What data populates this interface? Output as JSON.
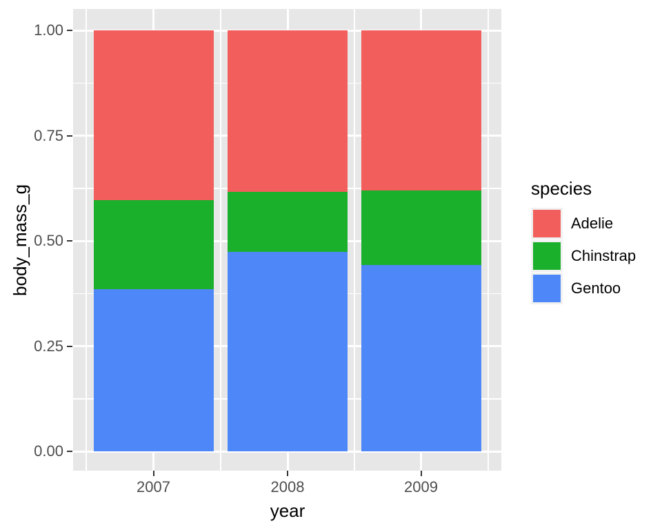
{
  "chart_data": {
    "type": "bar",
    "variant": "stacked-fill-normalized",
    "title": "",
    "xlabel": "year",
    "ylabel": "body_mass_g",
    "categories": [
      "2007",
      "2008",
      "2009"
    ],
    "series": [
      {
        "name": "Adelie",
        "color": "#F25E5C",
        "values": [
          0.403,
          0.384,
          0.381
        ]
      },
      {
        "name": "Chinstrap",
        "color": "#1AB02C",
        "values": [
          0.212,
          0.142,
          0.177
        ]
      },
      {
        "name": "Gentoo",
        "color": "#4E88F8",
        "values": [
          0.385,
          0.474,
          0.442
        ]
      }
    ],
    "stack_order_bottom_to_top": [
      "Gentoo",
      "Chinstrap",
      "Adelie"
    ],
    "ylim": [
      0,
      1
    ],
    "y_ticks": [
      {
        "label": "0.00",
        "value": 0.0
      },
      {
        "label": "0.25",
        "value": 0.25
      },
      {
        "label": "0.50",
        "value": 0.5
      },
      {
        "label": "0.75",
        "value": 0.75
      },
      {
        "label": "1.00",
        "value": 1.0
      }
    ],
    "y_minor_ticks": [
      0.125,
      0.375,
      0.625,
      0.875
    ],
    "grid": true,
    "legend": {
      "title": "species",
      "position": "right",
      "entries": [
        "Adelie",
        "Chinstrap",
        "Gentoo"
      ]
    },
    "theme": {
      "figure_background": "#FFFFFF",
      "panel_background": "#E7E7E7",
      "grid_color": "#FFFFFF",
      "tick_mark_color": "#333333",
      "tick_label_color": "#4D4D4D",
      "axis_title_color": "#000000",
      "legend_text_color": "#000000",
      "legend_key_background": "#F1F1F1"
    }
  }
}
